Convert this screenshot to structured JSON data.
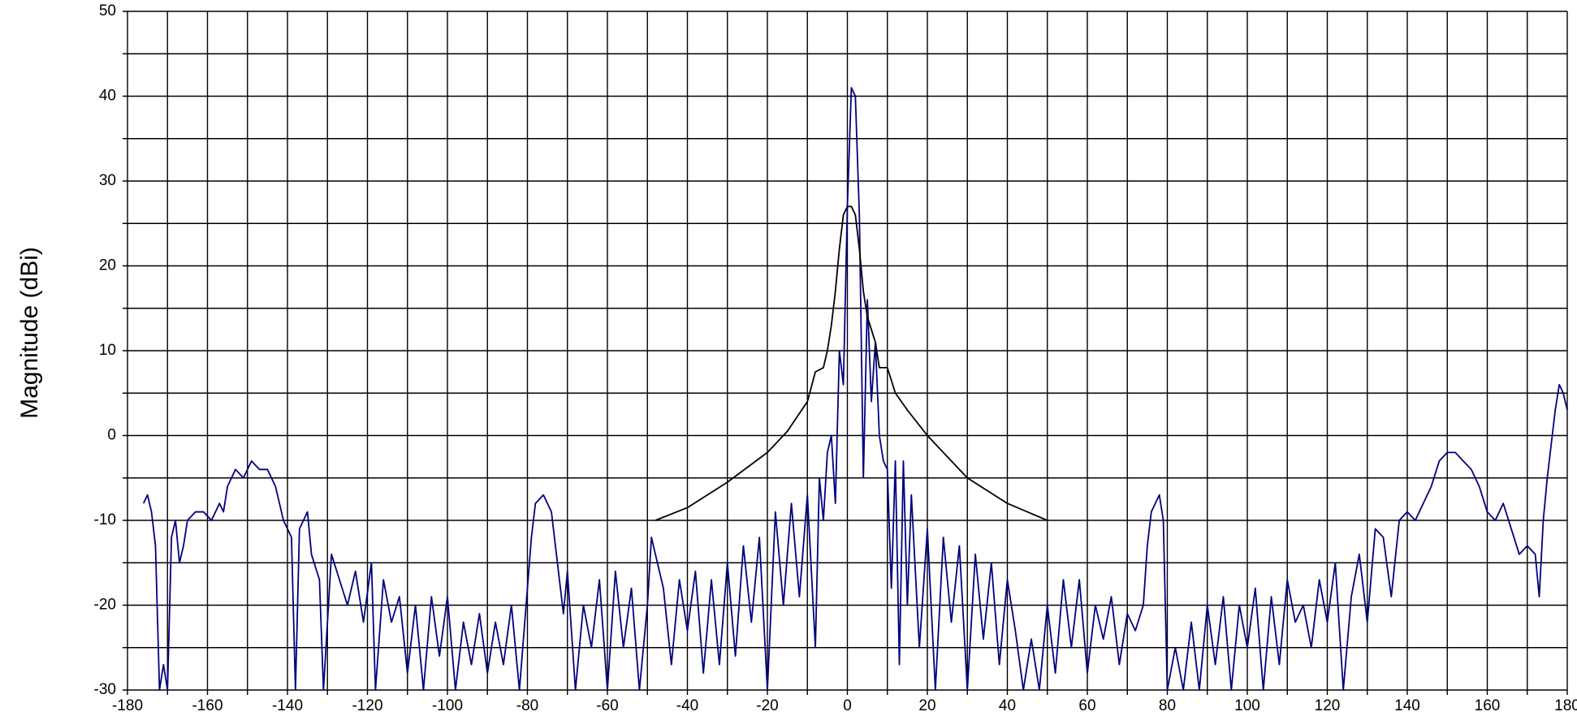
{
  "chart_data": {
    "type": "line",
    "ylabel": "Magnitude    (dBi)",
    "xlim": [
      -180,
      180
    ],
    "ylim": [
      -30,
      50
    ],
    "xticks": [
      -180,
      -160,
      -140,
      -120,
      -100,
      -80,
      -60,
      -40,
      -20,
      0,
      20,
      40,
      60,
      80,
      100,
      120,
      140,
      160,
      180
    ],
    "yticks": [
      -30,
      -20,
      -10,
      0,
      10,
      20,
      30,
      40,
      50
    ],
    "xgrid": [
      -180,
      -170,
      -160,
      -150,
      -140,
      -130,
      -120,
      -110,
      -100,
      -90,
      -80,
      -70,
      -60,
      -50,
      -40,
      -30,
      -20,
      -10,
      0,
      10,
      20,
      30,
      40,
      50,
      60,
      70,
      80,
      90,
      100,
      110,
      120,
      130,
      140,
      150,
      160,
      170,
      180
    ],
    "ygrid": [
      -30,
      -25,
      -20,
      -15,
      -10,
      -5,
      0,
      5,
      10,
      15,
      20,
      25,
      30,
      35,
      40,
      45,
      50
    ],
    "grid": true,
    "series": [
      {
        "color": "#000080",
        "x": [
          -176,
          -175,
          -174,
          -173,
          -172,
          -171,
          -170,
          -169,
          -168,
          -167,
          -166,
          -165,
          -163,
          -161,
          -159,
          -157,
          -156,
          -155,
          -153,
          -151,
          -149,
          -147,
          -145,
          -143,
          -141,
          -139,
          -138,
          -137,
          -135,
          -134,
          -132,
          -131,
          -129,
          -127,
          -125,
          -123,
          -121,
          -119,
          -118,
          -116,
          -114,
          -112,
          -110,
          -108,
          -106,
          -104,
          -102,
          -100,
          -98,
          -96,
          -94,
          -92,
          -90,
          -88,
          -86,
          -84,
          -82,
          -80,
          -79,
          -78,
          -76,
          -74,
          -73,
          -72,
          -71,
          -70,
          -68,
          -66,
          -64,
          -62,
          -60,
          -58,
          -56,
          -54,
          -52,
          -50,
          -49,
          -48,
          -46,
          -44,
          -42,
          -40,
          -38,
          -36,
          -34,
          -32,
          -30,
          -28,
          -26,
          -24,
          -22,
          -20,
          -18,
          -16,
          -14,
          -12,
          -10,
          -8,
          -7,
          -6,
          -5,
          -4,
          -3,
          -2,
          -1,
          0,
          1,
          2,
          3,
          4,
          5,
          6,
          7,
          8,
          9,
          10,
          11,
          12,
          13,
          14,
          15,
          16,
          18,
          20,
          22,
          24,
          26,
          28,
          30,
          32,
          34,
          36,
          38,
          40,
          42,
          44,
          46,
          48,
          50,
          52,
          54,
          56,
          58,
          60,
          62,
          64,
          66,
          68,
          70,
          72,
          74,
          75,
          76,
          78,
          79,
          80,
          82,
          84,
          86,
          88,
          90,
          92,
          94,
          96,
          98,
          100,
          102,
          104,
          106,
          108,
          110,
          112,
          114,
          116,
          118,
          120,
          122,
          124,
          126,
          128,
          130,
          132,
          134,
          136,
          138,
          140,
          142,
          144,
          146,
          148,
          150,
          152,
          154,
          156,
          158,
          160,
          162,
          164,
          166,
          168,
          170,
          172,
          173,
          174,
          175,
          176,
          177,
          178,
          179,
          180
        ],
        "values": [
          -8,
          -7,
          -9,
          -13,
          -30,
          -27,
          -30,
          -12,
          -10,
          -15,
          -13,
          -10,
          -9,
          -9,
          -10,
          -8,
          -9,
          -6,
          -4,
          -5,
          -3,
          -4,
          -4,
          -6,
          -10,
          -12,
          -30,
          -11,
          -9,
          -14,
          -17,
          -30,
          -14,
          -17,
          -20,
          -16,
          -22,
          -15,
          -30,
          -17,
          -22,
          -19,
          -28,
          -20,
          -30,
          -19,
          -26,
          -19,
          -30,
          -22,
          -27,
          -21,
          -28,
          -22,
          -27,
          -20,
          -30,
          -18,
          -12,
          -8,
          -7,
          -9,
          -13,
          -17,
          -21,
          -16,
          -30,
          -20,
          -25,
          -17,
          -30,
          -16,
          -25,
          -18,
          -30,
          -20,
          -12,
          -14,
          -18,
          -27,
          -17,
          -23,
          -16,
          -28,
          -17,
          -27,
          -15,
          -26,
          -13,
          -22,
          -12,
          -30,
          -9,
          -20,
          -8,
          -19,
          -7,
          -25,
          -5,
          -10,
          -2,
          0,
          -8,
          10,
          6,
          27,
          41,
          40,
          26,
          -5,
          16,
          4,
          11,
          0,
          -3,
          -4,
          -18,
          -3,
          -27,
          -3,
          -20,
          -7,
          -25,
          -11,
          -30,
          -12,
          -22,
          -13,
          -30,
          -14,
          -24,
          -15,
          -27,
          -17,
          -23,
          -30,
          -24,
          -30,
          -20,
          -28,
          -17,
          -25,
          -17,
          -28,
          -20,
          -24,
          -19,
          -27,
          -21,
          -23,
          -20,
          -13,
          -9,
          -7,
          -10,
          -30,
          -25,
          -30,
          -22,
          -30,
          -20,
          -27,
          -19,
          -30,
          -20,
          -25,
          -18,
          -30,
          -19,
          -27,
          -17,
          -22,
          -20,
          -25,
          -17,
          -22,
          -15,
          -30,
          -19,
          -14,
          -22,
          -11,
          -12,
          -19,
          -10,
          -9,
          -10,
          -8,
          -6,
          -3,
          -2,
          -2,
          -3,
          -4,
          -6,
          -9,
          -10,
          -8,
          -11,
          -14,
          -13,
          -14,
          -19,
          -10,
          -5,
          -1,
          3,
          6,
          5,
          3
        ]
      },
      {
        "color": "#000000",
        "x": [
          -48,
          -40,
          -30,
          -20,
          -15,
          -10,
          -8,
          -6,
          -5,
          -4,
          -3,
          -2,
          -1,
          0,
          1,
          2,
          3,
          4,
          5,
          7,
          8,
          10,
          12,
          15,
          20,
          30,
          40,
          50
        ],
        "values": [
          -10,
          -8.5,
          -5.5,
          -2,
          0.5,
          4,
          7.5,
          8,
          10,
          13,
          17,
          22,
          26,
          27,
          27,
          26,
          22,
          17,
          14,
          11,
          8,
          8,
          5,
          3,
          0,
          -5,
          -8,
          -10
        ]
      }
    ]
  }
}
